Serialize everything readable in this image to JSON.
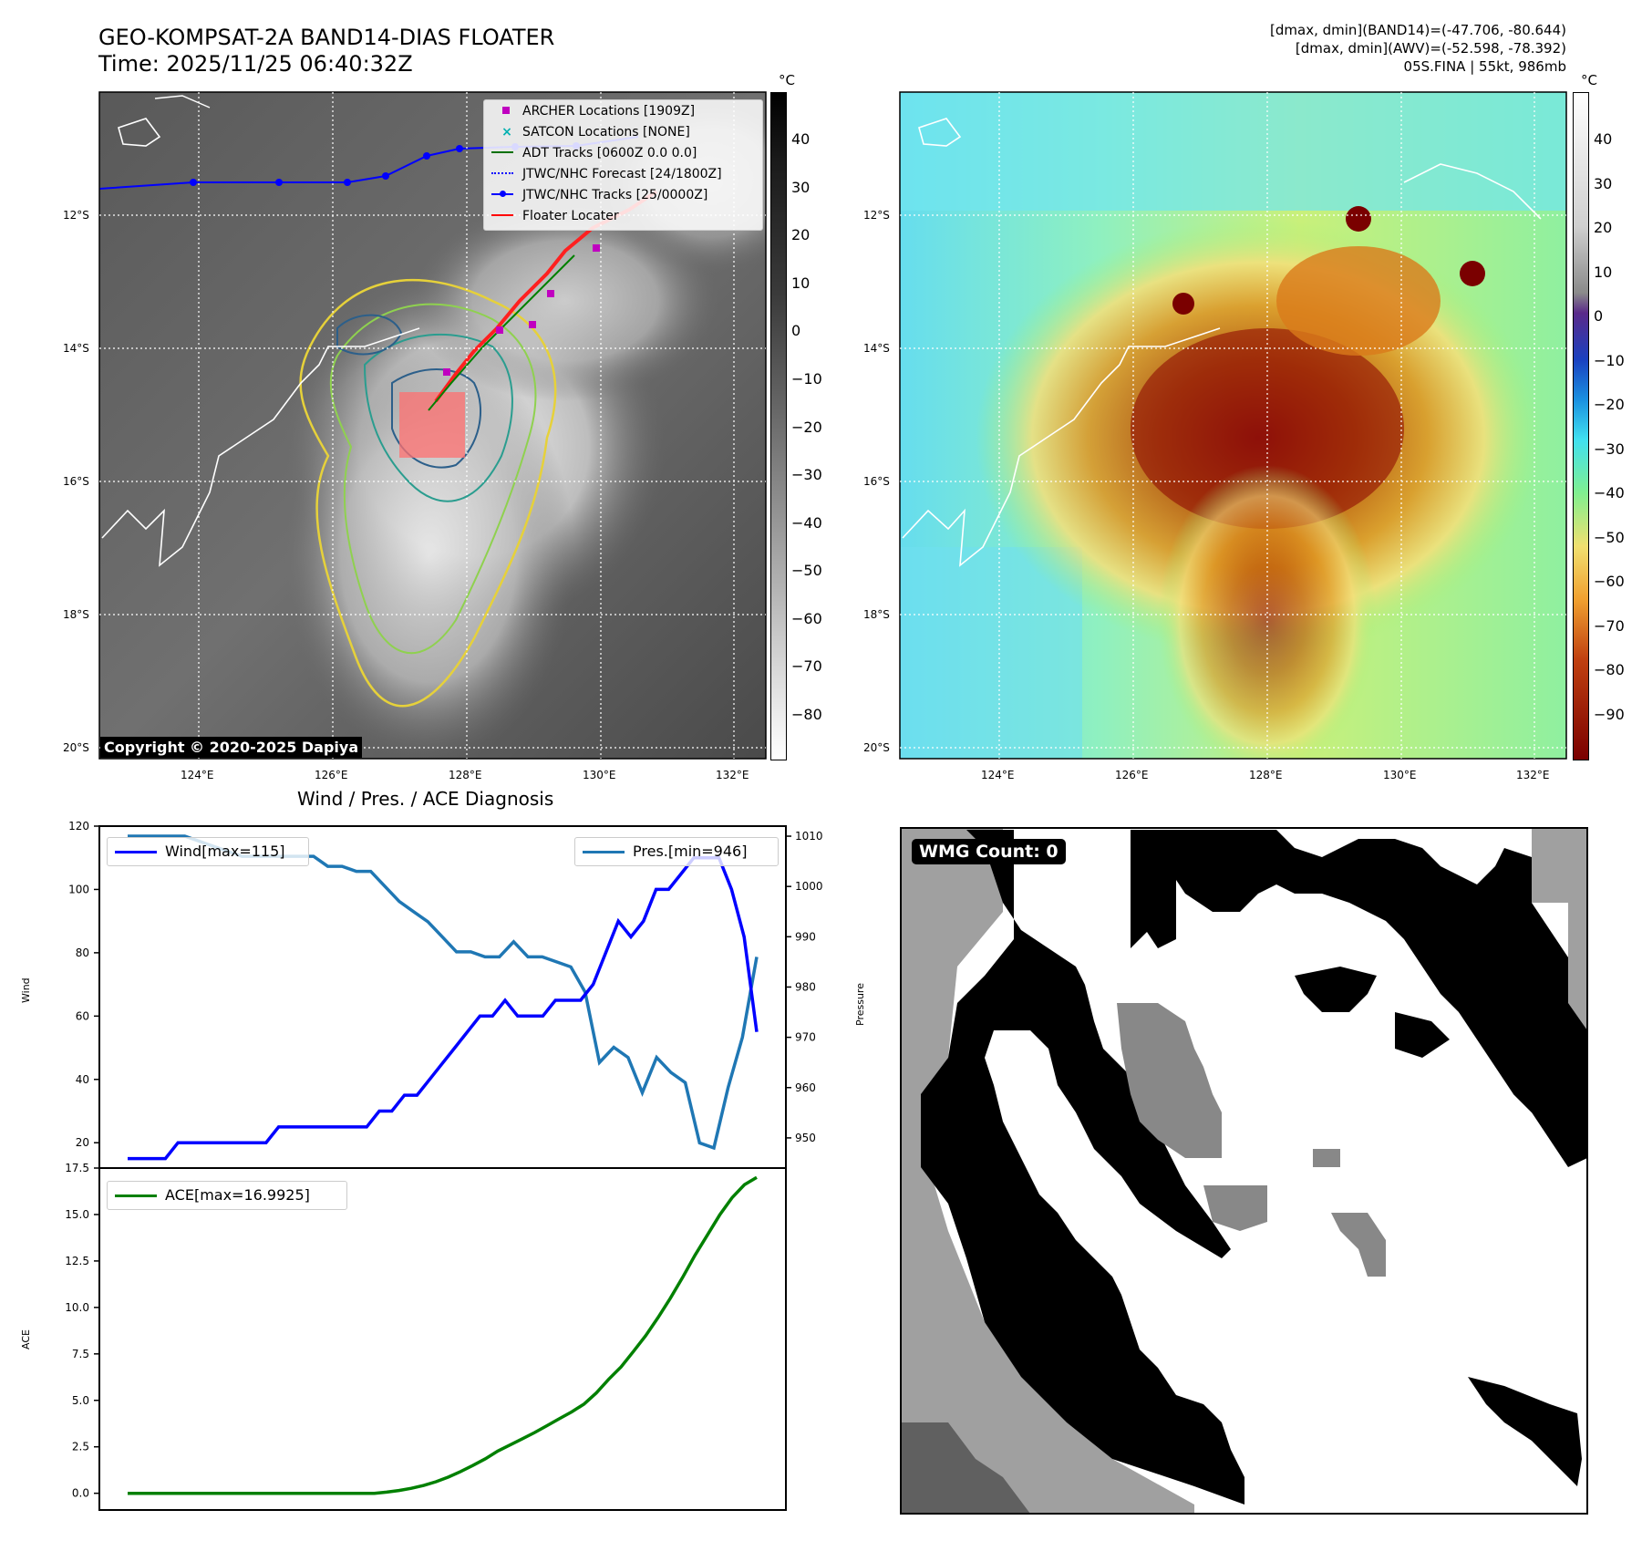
{
  "header": {
    "title_line1": "GEO-KOMPSAT-2A BAND14-DIAS FLOATER",
    "title_line2": "Time: 2025/11/25 06:40:32Z",
    "stats_line1": "[dmax, dmin](BAND14)=(-47.706, -80.644)",
    "stats_line2": "[dmax, dmin](AWV)=(-52.598, -78.392)",
    "stats_line3": "05S.FINA | 55kt, 986mb"
  },
  "copyright": "Copyright © 2020-2025 Dapiya",
  "map_axes": {
    "lat_labels": [
      "12°S",
      "14°S",
      "16°S",
      "18°S",
      "20°S"
    ],
    "lon_labels": [
      "124°E",
      "126°E",
      "128°E",
      "130°E",
      "132°E"
    ]
  },
  "colorbar_gray": {
    "unit": "°C",
    "ticks": [
      "40",
      "30",
      "20",
      "10",
      "0",
      "−10",
      "−20",
      "−30",
      "−40",
      "−50",
      "−60",
      "−70",
      "−80"
    ]
  },
  "colorbar_color": {
    "unit": "°C",
    "ticks": [
      "40",
      "30",
      "20",
      "10",
      "0",
      "−10",
      "−20",
      "−30",
      "−40",
      "−50",
      "−60",
      "−70",
      "−80",
      "−90"
    ]
  },
  "legend": {
    "items": [
      {
        "label": "ARCHER Locations [1909Z]",
        "color": "#c000c0",
        "kind": "square"
      },
      {
        "label": "SATCON Locations [NONE]",
        "color": "#00b0b0",
        "kind": "cross"
      },
      {
        "label": "ADT Tracks [0600Z 0.0 0.0]",
        "color": "#007000",
        "kind": "line"
      },
      {
        "label": "JTWC/NHC Forecast [24/1800Z]",
        "color": "#0000ff",
        "kind": "dotted"
      },
      {
        "label": "JTWC/NHC Tracks [25/0000Z]",
        "color": "#0000ff",
        "kind": "line-dot"
      },
      {
        "label": "Floater Locater",
        "color": "#ff0000",
        "kind": "line"
      }
    ]
  },
  "wmg": {
    "label": "WMG Count: 0"
  },
  "chart_data": [
    {
      "type": "line",
      "title": "Wind / Pres. / ACE Diagnosis",
      "ylabel": "Wind",
      "y2label": "Pressure",
      "ylim": [
        12,
        120
      ],
      "y2lim": [
        944,
        1012
      ],
      "yticks": [
        20,
        40,
        60,
        80,
        100,
        120
      ],
      "y2ticks": [
        950,
        960,
        970,
        980,
        990,
        1000,
        1010
      ],
      "series": [
        {
          "name": "Wind[max=115]",
          "color": "#0000ff",
          "axis": "left",
          "values": [
            15,
            15,
            15,
            15,
            20,
            20,
            20,
            20,
            20,
            20,
            20,
            20,
            25,
            25,
            25,
            25,
            25,
            25,
            25,
            25,
            30,
            30,
            35,
            35,
            40,
            45,
            50,
            55,
            60,
            60,
            65,
            60,
            60,
            60,
            65,
            65,
            65,
            70,
            80,
            90,
            85,
            90,
            100,
            100,
            105,
            110,
            110,
            110,
            100,
            85,
            55
          ]
        },
        {
          "name": "Pres.[min=946]",
          "color": "#1f77b4",
          "axis": "right",
          "values": [
            1010,
            1010,
            1010,
            1010,
            1010,
            1009,
            1008,
            1007,
            1006,
            1006,
            1006,
            1006,
            1006,
            1006,
            1004,
            1004,
            1003,
            1003,
            1000,
            997,
            995,
            993,
            990,
            987,
            987,
            986,
            986,
            989,
            986,
            986,
            985,
            984,
            979,
            965,
            968,
            966,
            959,
            966,
            963,
            961,
            949,
            948,
            960,
            970,
            986
          ]
        }
      ]
    },
    {
      "type": "line",
      "ylabel": "ACE",
      "ylim": [
        -0.9,
        17.5
      ],
      "yticks": [
        0.0,
        2.5,
        5.0,
        7.5,
        10.0,
        12.5,
        15.0,
        17.5
      ],
      "series": [
        {
          "name": "ACE[max=16.9925]",
          "color": "#008000",
          "values": [
            0,
            0,
            0,
            0,
            0,
            0,
            0,
            0,
            0,
            0,
            0,
            0,
            0,
            0,
            0,
            0,
            0,
            0,
            0,
            0,
            0,
            0.06,
            0.15,
            0.27,
            0.42,
            0.62,
            0.87,
            1.17,
            1.5,
            1.86,
            2.27,
            2.6,
            2.93,
            3.27,
            3.64,
            4.01,
            4.38,
            4.8,
            5.4,
            6.13,
            6.8,
            7.63,
            8.48,
            9.46,
            10.5,
            11.62,
            12.82,
            13.9,
            14.98,
            15.9,
            16.6,
            16.9925
          ]
        }
      ]
    }
  ],
  "colors": {
    "title_text": "#000000",
    "legend_bg": "#ffffffd9"
  }
}
